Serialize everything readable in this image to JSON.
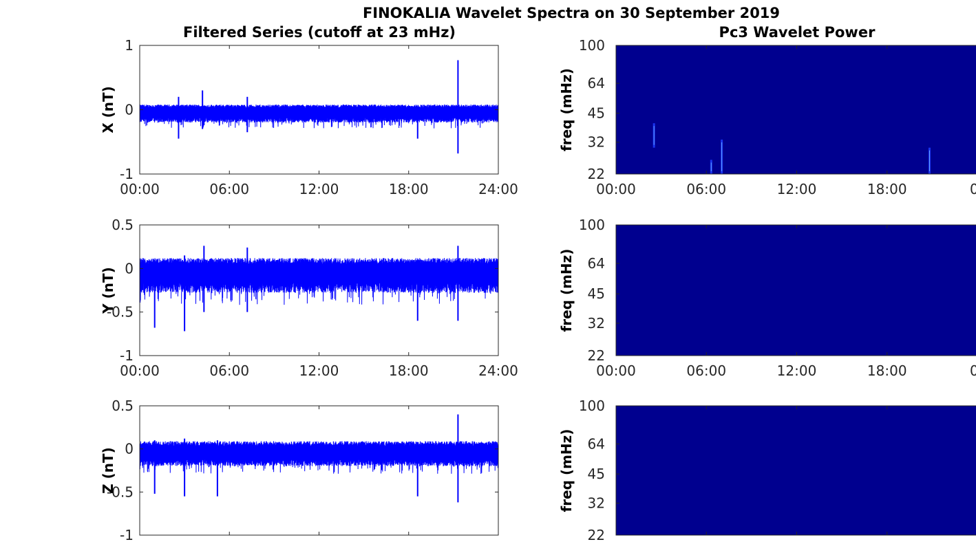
{
  "title": "FINOKALIA Wavelet Spectra on 30 September 2019",
  "left_column_title": "Filtered Series (cutoff at 23 mHz)",
  "right_column_title": "Pc3 Wavelet Power",
  "colors": {
    "trace": "#0000ff",
    "spectrogram_background": "#00008f",
    "axis": "#262626"
  },
  "chart_data": [
    {
      "type": "line",
      "panel": "X",
      "ylabel": "X (nT)",
      "xlim": [
        "00:00",
        "24:00"
      ],
      "ylim": [
        -1,
        1
      ],
      "xticks": [
        "00:00",
        "06:00",
        "12:00",
        "18:00",
        "24:00"
      ],
      "yticks": [
        "1",
        "0",
        "-1"
      ],
      "series": [
        {
          "base": -0.05,
          "upper": 0.08,
          "lower": -0.2,
          "spikes": [
            {
              "t": 2.6,
              "hi": 0.2,
              "lo": -0.45
            },
            {
              "t": 4.2,
              "hi": 0.3,
              "lo": -0.3
            },
            {
              "t": 7.2,
              "hi": 0.2,
              "lo": -0.35
            },
            {
              "t": 18.6,
              "hi": 0.05,
              "lo": -0.45
            },
            {
              "t": 21.3,
              "hi": 0.77,
              "lo": -0.68
            }
          ]
        }
      ]
    },
    {
      "type": "line",
      "panel": "Y",
      "ylabel": "Y (nT)",
      "xlim": [
        "00:00",
        "24:00"
      ],
      "ylim": [
        -1,
        0.5
      ],
      "xticks": [
        "00:00",
        "06:00",
        "12:00",
        "18:00",
        "24:00"
      ],
      "yticks": [
        "0.5",
        "0",
        "-0.5",
        "-1"
      ],
      "series": [
        {
          "base": -0.05,
          "upper": 0.12,
          "lower": -0.28,
          "spikes": [
            {
              "t": 1.0,
              "hi": 0.1,
              "lo": -0.68
            },
            {
              "t": 3.0,
              "hi": 0.15,
              "lo": -0.72
            },
            {
              "t": 4.3,
              "hi": 0.26,
              "lo": -0.5
            },
            {
              "t": 7.2,
              "hi": 0.24,
              "lo": -0.5
            },
            {
              "t": 18.6,
              "hi": 0.1,
              "lo": -0.6
            },
            {
              "t": 21.3,
              "hi": 0.26,
              "lo": -0.6
            }
          ]
        }
      ]
    },
    {
      "type": "line",
      "panel": "Z",
      "ylabel": "Z (nT)",
      "xlim": [
        "00:00",
        "24:00"
      ],
      "ylim": [
        -1,
        0.5
      ],
      "xticks": [],
      "yticks": [
        "0.5",
        "0",
        "-0.5",
        "-1"
      ],
      "series": [
        {
          "base": -0.05,
          "upper": 0.09,
          "lower": -0.2,
          "spikes": [
            {
              "t": 1.0,
              "hi": 0.1,
              "lo": -0.52
            },
            {
              "t": 3.0,
              "hi": 0.12,
              "lo": -0.55
            },
            {
              "t": 5.2,
              "hi": 0.1,
              "lo": -0.55
            },
            {
              "t": 18.6,
              "hi": 0.08,
              "lo": -0.55
            },
            {
              "t": 21.3,
              "hi": 0.4,
              "lo": -0.62
            }
          ]
        }
      ]
    },
    {
      "type": "heatmap",
      "panel": "X",
      "ylabel": "freq (mHz)",
      "ylim": [
        22,
        100
      ],
      "xticks": [
        "00:00",
        "06:00",
        "12:00",
        "18:00",
        "00"
      ],
      "yticks": [
        "100",
        "64",
        "45",
        "32",
        "22"
      ],
      "features": [
        {
          "t": 2.5,
          "f_low": 30,
          "f_high": 40
        },
        {
          "t": 6.3,
          "f_low": 22,
          "f_high": 26
        },
        {
          "t": 7.0,
          "f_low": 22,
          "f_high": 33
        },
        {
          "t": 20.8,
          "f_low": 22,
          "f_high": 30
        }
      ]
    },
    {
      "type": "heatmap",
      "panel": "Y",
      "ylabel": "freq (mHz)",
      "ylim": [
        22,
        100
      ],
      "xticks": [
        "00:00",
        "06:00",
        "12:00",
        "18:00",
        "00"
      ],
      "yticks": [
        "100",
        "64",
        "45",
        "32",
        "22"
      ],
      "features": []
    },
    {
      "type": "heatmap",
      "panel": "Z",
      "ylabel": "freq (mHz)",
      "ylim": [
        22,
        100
      ],
      "xticks": [],
      "yticks": [
        "100",
        "64",
        "45",
        "32",
        "22"
      ],
      "features": []
    }
  ]
}
